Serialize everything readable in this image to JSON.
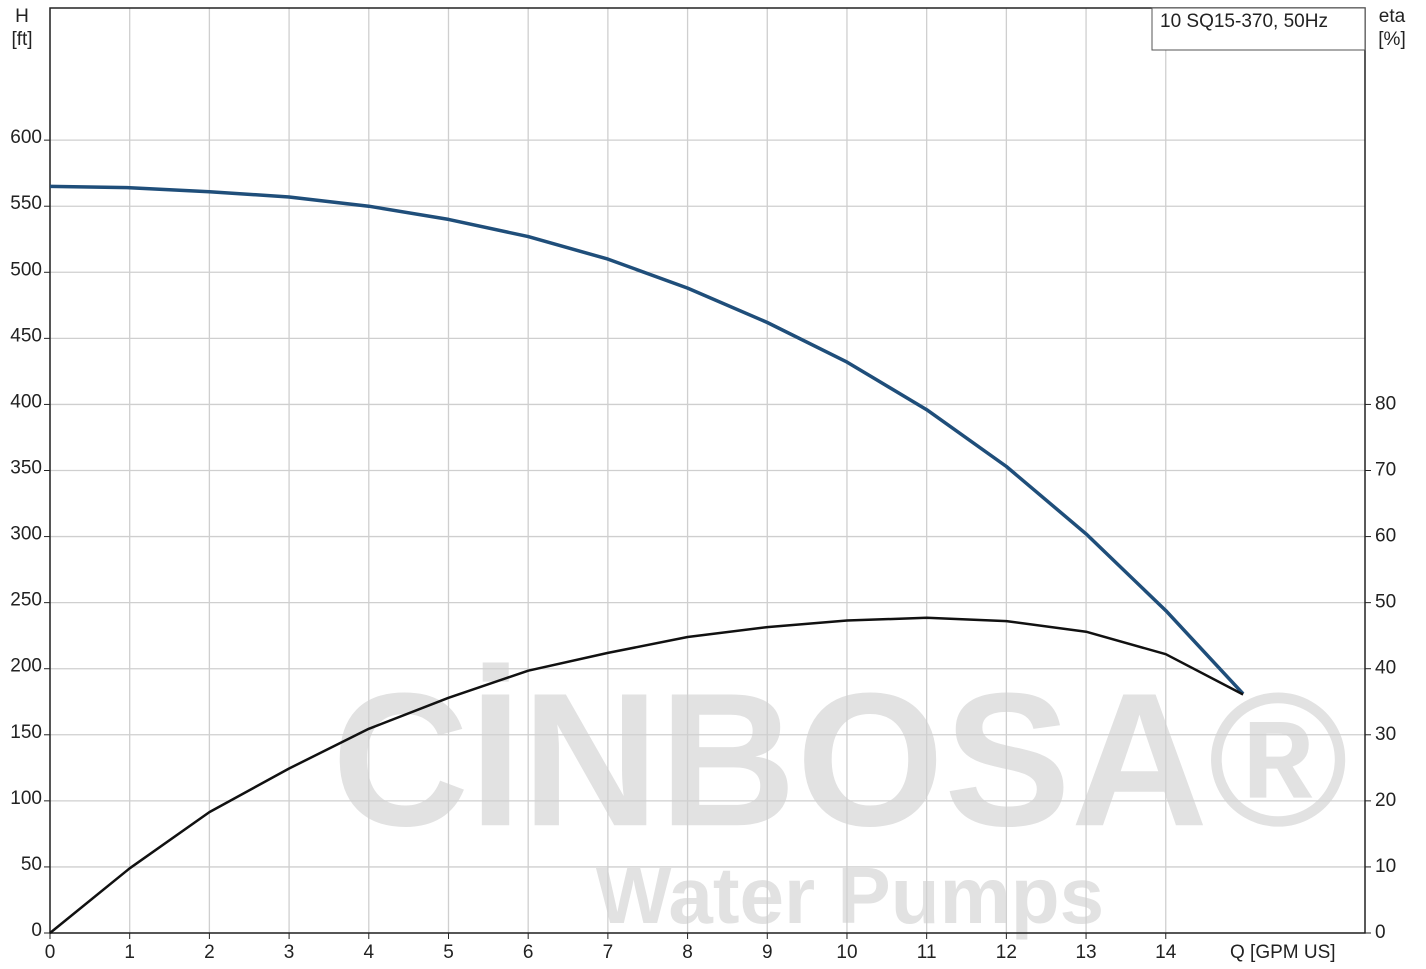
{
  "chart_data": {
    "type": "line",
    "legend_title": "10 SQ15-370, 50Hz",
    "y_label": "H",
    "y_unit": "[ft]",
    "y2_label": "eta",
    "y2_unit": "[%]",
    "x_label": "Q [GPM US]",
    "watermark": "CİNBOSA®",
    "watermark_sub": "Water Pumps",
    "x": [
      0,
      1,
      2,
      3,
      4,
      5,
      6,
      7,
      8,
      9,
      10,
      11,
      12,
      13,
      14,
      14.97
    ],
    "series": [
      {
        "name": "H",
        "color": "#1f4e7a",
        "axis": "y",
        "values": [
          565,
          564,
          561,
          557,
          550,
          540,
          527,
          510,
          488,
          462,
          432,
          396,
          353,
          302,
          244,
          181
        ]
      },
      {
        "name": "eta",
        "color": "#111111",
        "axis": "y2",
        "values": [
          0,
          9.8,
          18.3,
          24.9,
          30.9,
          35.6,
          39.7,
          42.4,
          44.8,
          46.3,
          47.3,
          47.7,
          47.2,
          45.6,
          42.2,
          36.1
        ]
      }
    ],
    "xlim": [
      0,
      16.5
    ],
    "xticks": [
      0,
      1,
      2,
      3,
      4,
      5,
      6,
      7,
      8,
      9,
      10,
      11,
      12,
      13,
      14
    ],
    "ylim": [
      0,
      700
    ],
    "yticks": [
      0,
      50,
      100,
      150,
      200,
      250,
      300,
      350,
      400,
      450,
      500,
      550,
      600
    ],
    "y2lim": [
      0,
      140
    ],
    "y2ticks": [
      0,
      10,
      20,
      30,
      40,
      50,
      60,
      70,
      80
    ],
    "grid": true
  }
}
